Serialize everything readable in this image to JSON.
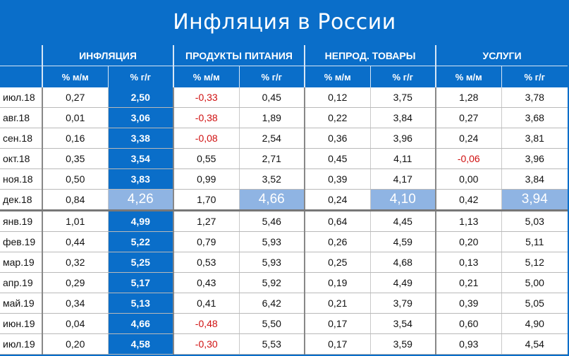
{
  "title": "Инфляция в России",
  "colors": {
    "header_bg": "#0a6ec9",
    "highlight": "#0a6ec9",
    "dec_highlight": "#8fb4e3",
    "negative": "#d01010"
  },
  "chart_data": {
    "type": "table",
    "groups": [
      "ИНФЛЯЦИЯ",
      "ПРОДУКТЫ ПИТАНИЯ",
      "НЕПРОД. ТОВАРЫ",
      "УСЛУГИ"
    ],
    "subheaders": [
      "% м/м",
      "% г/г"
    ],
    "rows": [
      [
        "июл.18",
        "0,27",
        "2,50",
        "-0,33",
        "0,45",
        "0,12",
        "3,75",
        "1,28",
        "3,78"
      ],
      [
        "авг.18",
        "0,01",
        "3,06",
        "-0,38",
        "1,89",
        "0,22",
        "3,84",
        "0,27",
        "3,68"
      ],
      [
        "сен.18",
        "0,16",
        "3,38",
        "-0,08",
        "2,54",
        "0,36",
        "3,96",
        "0,24",
        "3,81"
      ],
      [
        "окт.18",
        "0,35",
        "3,54",
        "0,55",
        "2,71",
        "0,45",
        "4,11",
        "-0,06",
        "3,96"
      ],
      [
        "ноя.18",
        "0,50",
        "3,83",
        "0,99",
        "3,52",
        "0,39",
        "4,17",
        "0,00",
        "3,84"
      ],
      [
        "дек.18",
        "0,84",
        "4,26",
        "1,70",
        "4,66",
        "0,24",
        "4,10",
        "0,42",
        "3,94"
      ],
      [
        "янв.19",
        "1,01",
        "4,99",
        "1,27",
        "5,46",
        "0,64",
        "4,45",
        "1,13",
        "5,03"
      ],
      [
        "фев.19",
        "0,44",
        "5,22",
        "0,79",
        "5,93",
        "0,26",
        "4,59",
        "0,20",
        "5,11"
      ],
      [
        "мар.19",
        "0,32",
        "5,25",
        "0,53",
        "5,93",
        "0,25",
        "4,68",
        "0,13",
        "5,12"
      ],
      [
        "апр.19",
        "0,29",
        "5,17",
        "0,43",
        "5,92",
        "0,19",
        "4,49",
        "0,21",
        "5,00"
      ],
      [
        "май.19",
        "0,34",
        "5,13",
        "0,41",
        "6,42",
        "0,21",
        "3,79",
        "0,39",
        "5,05"
      ],
      [
        "июн.19",
        "0,04",
        "4,66",
        "-0,48",
        "5,50",
        "0,17",
        "3,54",
        "0,60",
        "4,90"
      ],
      [
        "июл.19",
        "0,20",
        "4,58",
        "-0,30",
        "5,53",
        "0,17",
        "3,59",
        "0,93",
        "4,54"
      ]
    ]
  }
}
